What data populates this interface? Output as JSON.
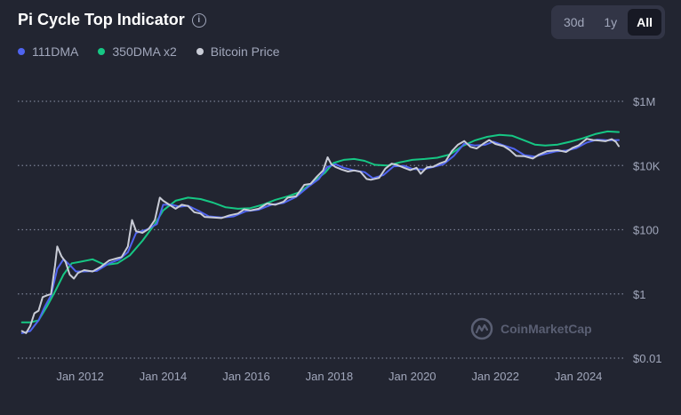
{
  "header": {
    "title": "Pi Cycle Top Indicator",
    "info_icon": "info-icon",
    "ranges": [
      "30d",
      "1y",
      "All"
    ],
    "active_range": "All"
  },
  "legend": [
    {
      "name": "111DMA",
      "color": "#4f64f0"
    },
    {
      "name": "350DMA x2",
      "color": "#16c784"
    },
    {
      "name": "Bitcoin Price",
      "color": "#c9ccd6"
    }
  ],
  "watermark": {
    "text": "CoinMarketCap",
    "icon": "coinmarketcap-logo-icon"
  },
  "chart_data": {
    "type": "line",
    "title": "Pi Cycle Top Indicator",
    "y_scale": "log",
    "ylim": [
      0.01,
      1000000
    ],
    "xlim": [
      2010.6,
      2025.0
    ],
    "y_ticks": [
      {
        "value": 1000000,
        "label": "$1M"
      },
      {
        "value": 10000,
        "label": "$10K"
      },
      {
        "value": 100,
        "label": "$100"
      },
      {
        "value": 1,
        "label": "$1"
      },
      {
        "value": 0.01,
        "label": "$0.01"
      }
    ],
    "x_ticks": [
      {
        "value": 2012,
        "label": "Jan 2012"
      },
      {
        "value": 2014,
        "label": "Jan 2014"
      },
      {
        "value": 2016,
        "label": "Jan 2016"
      },
      {
        "value": 2018,
        "label": "Jan 2018"
      },
      {
        "value": 2020,
        "label": "Jan 2020"
      },
      {
        "value": 2022,
        "label": "Jan 2022"
      },
      {
        "value": 2024,
        "label": "Jan 2024"
      }
    ],
    "grid": true,
    "series": [
      {
        "name": "Bitcoin Price",
        "color": "#c9ccd6",
        "points": [
          [
            2010.6,
            0.07
          ],
          [
            2010.7,
            0.06
          ],
          [
            2010.8,
            0.1
          ],
          [
            2010.9,
            0.25
          ],
          [
            2011.0,
            0.3
          ],
          [
            2011.1,
            0.8
          ],
          [
            2011.2,
            0.9
          ],
          [
            2011.3,
            1.0
          ],
          [
            2011.4,
            8.0
          ],
          [
            2011.45,
            30
          ],
          [
            2011.55,
            15
          ],
          [
            2011.65,
            10
          ],
          [
            2011.75,
            4
          ],
          [
            2011.85,
            3
          ],
          [
            2011.95,
            4.5
          ],
          [
            2012.1,
            5.5
          ],
          [
            2012.3,
            5.0
          ],
          [
            2012.5,
            7.0
          ],
          [
            2012.7,
            11
          ],
          [
            2012.9,
            13
          ],
          [
            2013.0,
            14
          ],
          [
            2013.15,
            30
          ],
          [
            2013.25,
            200
          ],
          [
            2013.35,
            90
          ],
          [
            2013.5,
            80
          ],
          [
            2013.65,
            105
          ],
          [
            2013.8,
            200
          ],
          [
            2013.92,
            1000
          ],
          [
            2014.0,
            800
          ],
          [
            2014.15,
            600
          ],
          [
            2014.3,
            450
          ],
          [
            2014.45,
            600
          ],
          [
            2014.6,
            550
          ],
          [
            2014.75,
            350
          ],
          [
            2014.9,
            320
          ],
          [
            2015.0,
            250
          ],
          [
            2015.2,
            240
          ],
          [
            2015.4,
            230
          ],
          [
            2015.6,
            280
          ],
          [
            2015.8,
            320
          ],
          [
            2015.95,
            430
          ],
          [
            2016.1,
            400
          ],
          [
            2016.3,
            450
          ],
          [
            2016.5,
            650
          ],
          [
            2016.7,
            600
          ],
          [
            2016.9,
            750
          ],
          [
            2017.0,
            1000
          ],
          [
            2017.2,
            1100
          ],
          [
            2017.4,
            2500
          ],
          [
            2017.55,
            2700
          ],
          [
            2017.7,
            4500
          ],
          [
            2017.85,
            7000
          ],
          [
            2017.96,
            18000
          ],
          [
            2018.05,
            11000
          ],
          [
            2018.15,
            9000
          ],
          [
            2018.3,
            7500
          ],
          [
            2018.45,
            6500
          ],
          [
            2018.6,
            7000
          ],
          [
            2018.75,
            6400
          ],
          [
            2018.9,
            3800
          ],
          [
            2019.0,
            3600
          ],
          [
            2019.2,
            4100
          ],
          [
            2019.35,
            8000
          ],
          [
            2019.5,
            11500
          ],
          [
            2019.65,
            10200
          ],
          [
            2019.8,
            8500
          ],
          [
            2019.95,
            7200
          ],
          [
            2020.1,
            8500
          ],
          [
            2020.2,
            5500
          ],
          [
            2020.35,
            8800
          ],
          [
            2020.5,
            9200
          ],
          [
            2020.65,
            11500
          ],
          [
            2020.8,
            13500
          ],
          [
            2020.95,
            28000
          ],
          [
            2021.1,
            45000
          ],
          [
            2021.25,
            58000
          ],
          [
            2021.4,
            38000
          ],
          [
            2021.55,
            34000
          ],
          [
            2021.7,
            47000
          ],
          [
            2021.85,
            62000
          ],
          [
            2022.0,
            47000
          ],
          [
            2022.2,
            40000
          ],
          [
            2022.35,
            30000
          ],
          [
            2022.5,
            20000
          ],
          [
            2022.7,
            19500
          ],
          [
            2022.9,
            16500
          ],
          [
            2023.05,
            22000
          ],
          [
            2023.25,
            28000
          ],
          [
            2023.5,
            30000
          ],
          [
            2023.7,
            26500
          ],
          [
            2023.85,
            35000
          ],
          [
            2024.0,
            42000
          ],
          [
            2024.2,
            68000
          ],
          [
            2024.35,
            62000
          ],
          [
            2024.5,
            60000
          ],
          [
            2024.65,
            57000
          ],
          [
            2024.8,
            66000
          ],
          [
            2024.9,
            55000
          ],
          [
            2024.97,
            40000
          ]
        ]
      },
      {
        "name": "111DMA",
        "color": "#4f64f0",
        "points": [
          [
            2010.6,
            0.06
          ],
          [
            2010.8,
            0.07
          ],
          [
            2011.0,
            0.15
          ],
          [
            2011.15,
            0.4
          ],
          [
            2011.3,
            0.9
          ],
          [
            2011.45,
            6
          ],
          [
            2011.6,
            12
          ],
          [
            2011.75,
            8
          ],
          [
            2011.9,
            5
          ],
          [
            2012.1,
            5
          ],
          [
            2012.4,
            5.2
          ],
          [
            2012.7,
            9
          ],
          [
            2012.95,
            12
          ],
          [
            2013.15,
            20
          ],
          [
            2013.35,
            80
          ],
          [
            2013.6,
            100
          ],
          [
            2013.85,
            150
          ],
          [
            2014.0,
            600
          ],
          [
            2014.2,
            600
          ],
          [
            2014.4,
            520
          ],
          [
            2014.6,
            560
          ],
          [
            2014.85,
            390
          ],
          [
            2015.1,
            260
          ],
          [
            2015.4,
            240
          ],
          [
            2015.7,
            260
          ],
          [
            2016.0,
            380
          ],
          [
            2016.3,
            420
          ],
          [
            2016.6,
            600
          ],
          [
            2016.9,
            680
          ],
          [
            2017.2,
            1050
          ],
          [
            2017.5,
            2200
          ],
          [
            2017.75,
            3800
          ],
          [
            2017.95,
            9000
          ],
          [
            2018.15,
            11000
          ],
          [
            2018.35,
            8500
          ],
          [
            2018.6,
            7000
          ],
          [
            2018.85,
            6200
          ],
          [
            2019.05,
            4000
          ],
          [
            2019.3,
            5000
          ],
          [
            2019.55,
            9500
          ],
          [
            2019.8,
            9800
          ],
          [
            2020.0,
            7800
          ],
          [
            2020.25,
            7500
          ],
          [
            2020.5,
            9000
          ],
          [
            2020.75,
            11000
          ],
          [
            2021.0,
            20000
          ],
          [
            2021.25,
            48000
          ],
          [
            2021.5,
            42000
          ],
          [
            2021.75,
            44000
          ],
          [
            2021.95,
            55000
          ],
          [
            2022.2,
            42000
          ],
          [
            2022.45,
            33000
          ],
          [
            2022.7,
            21000
          ],
          [
            2022.95,
            19000
          ],
          [
            2023.2,
            23000
          ],
          [
            2023.45,
            27500
          ],
          [
            2023.7,
            29000
          ],
          [
            2023.95,
            35000
          ],
          [
            2024.2,
            52000
          ],
          [
            2024.45,
            64000
          ],
          [
            2024.7,
            61000
          ],
          [
            2024.97,
            62000
          ]
        ]
      },
      {
        "name": "350DMA x2",
        "color": "#16c784",
        "points": [
          [
            2010.6,
            0.13
          ],
          [
            2010.8,
            0.13
          ],
          [
            2011.0,
            0.15
          ],
          [
            2011.2,
            0.4
          ],
          [
            2011.4,
            1.2
          ],
          [
            2011.6,
            4
          ],
          [
            2011.8,
            9
          ],
          [
            2012.0,
            10
          ],
          [
            2012.3,
            12
          ],
          [
            2012.6,
            8
          ],
          [
            2012.9,
            9
          ],
          [
            2013.2,
            16
          ],
          [
            2013.5,
            45
          ],
          [
            2013.8,
            150
          ],
          [
            2014.0,
            400
          ],
          [
            2014.3,
            800
          ],
          [
            2014.6,
            1000
          ],
          [
            2014.9,
            900
          ],
          [
            2015.2,
            700
          ],
          [
            2015.5,
            500
          ],
          [
            2015.8,
            450
          ],
          [
            2016.1,
            470
          ],
          [
            2016.4,
            600
          ],
          [
            2016.7,
            850
          ],
          [
            2017.0,
            1100
          ],
          [
            2017.3,
            1500
          ],
          [
            2017.6,
            3000
          ],
          [
            2017.9,
            6000
          ],
          [
            2018.1,
            12000
          ],
          [
            2018.35,
            15000
          ],
          [
            2018.6,
            16000
          ],
          [
            2018.85,
            14000
          ],
          [
            2019.1,
            10500
          ],
          [
            2019.4,
            10000
          ],
          [
            2019.7,
            12500
          ],
          [
            2020.0,
            15000
          ],
          [
            2020.3,
            16000
          ],
          [
            2020.6,
            17500
          ],
          [
            2020.9,
            22000
          ],
          [
            2021.2,
            40000
          ],
          [
            2021.5,
            60000
          ],
          [
            2021.8,
            78000
          ],
          [
            2022.1,
            90000
          ],
          [
            2022.4,
            85000
          ],
          [
            2022.7,
            60000
          ],
          [
            2022.95,
            45000
          ],
          [
            2023.2,
            42000
          ],
          [
            2023.5,
            45000
          ],
          [
            2023.8,
            55000
          ],
          [
            2024.1,
            70000
          ],
          [
            2024.4,
            95000
          ],
          [
            2024.7,
            115000
          ],
          [
            2024.97,
            110000
          ]
        ]
      }
    ]
  }
}
